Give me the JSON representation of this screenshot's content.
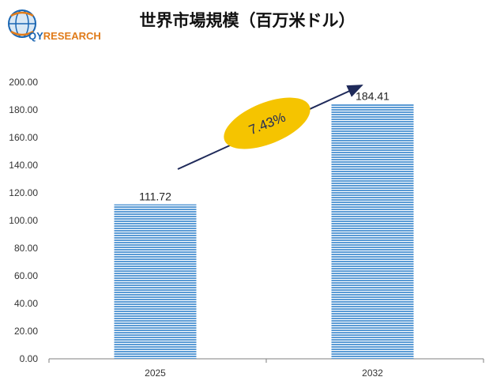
{
  "brand": {
    "logo_text_main": "QY",
    "logo_text_rest": "RESEARCH"
  },
  "title": "世界市場規模（百万米ドル）",
  "colors": {
    "bar": "#5b9bd5",
    "bar_stripe": "#ffffff",
    "axis": "#7f7f7f",
    "ellipse": "#f5c400",
    "arrow": "#1f2a5a"
  },
  "chart_data": {
    "type": "bar",
    "categories": [
      "2025",
      "2032"
    ],
    "values": [
      111.72,
      184.41
    ],
    "value_labels": [
      "111.72",
      "184.41"
    ],
    "ylim": [
      0,
      200
    ],
    "yticks": [
      "0.00",
      "20.00",
      "40.00",
      "60.00",
      "80.00",
      "100.00",
      "120.00",
      "140.00",
      "160.00",
      "180.00",
      "200.00"
    ],
    "grid": false,
    "annotation": "7.43%"
  }
}
